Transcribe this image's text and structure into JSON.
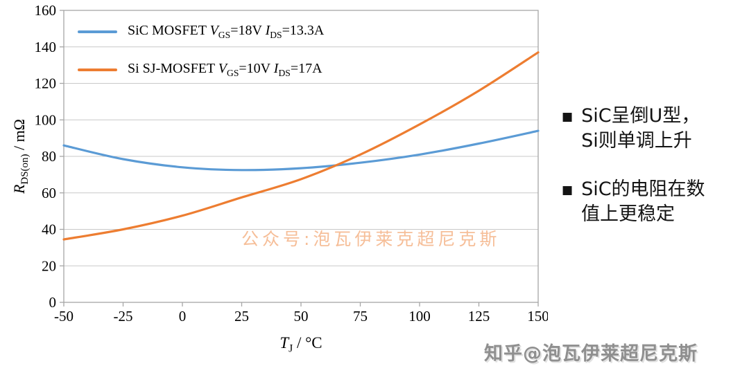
{
  "chart_data": {
    "type": "line",
    "title": "",
    "xlabel": "T_J / °C",
    "ylabel": "R_DS(on) / mΩ",
    "xlabel_parts": [
      {
        "t": "T",
        "s": "i"
      },
      {
        "t": "J",
        "s": "sub"
      },
      {
        "t": " / °C",
        "s": "n"
      }
    ],
    "ylabel_parts": [
      {
        "t": "R",
        "s": "i"
      },
      {
        "t": "DS(on)",
        "s": "sub"
      },
      {
        "t": " / mΩ",
        "s": "n"
      }
    ],
    "xlim": [
      -50,
      150
    ],
    "ylim": [
      0,
      160
    ],
    "x_ticks": [
      -50,
      -25,
      0,
      25,
      50,
      75,
      100,
      125,
      150
    ],
    "y_ticks": [
      0,
      20,
      40,
      60,
      80,
      100,
      120,
      140,
      160
    ],
    "grid": "horizontal",
    "legend_position": "top-left inside plot",
    "x": [
      -50,
      -25,
      0,
      25,
      50,
      75,
      100,
      125,
      150
    ],
    "series": [
      {
        "name": "SiC MOSFET VGS=18V IDS=13.3A",
        "label_parts": [
          {
            "t": "SiC MOSFET ",
            "s": "n"
          },
          {
            "t": "V",
            "s": "i"
          },
          {
            "t": "GS",
            "s": "sub"
          },
          {
            "t": "=18V ",
            "s": "n"
          },
          {
            "t": "I",
            "s": "i"
          },
          {
            "t": "DS",
            "s": "sub"
          },
          {
            "t": "=13.3A",
            "s": "n"
          }
        ],
        "color": "#5B9BD5",
        "line_width": 3.2,
        "values": [
          86,
          78.5,
          74,
          72.5,
          73.5,
          76.5,
          81,
          87,
          94
        ]
      },
      {
        "name": "Si SJ-MOSFET VGS=10V IDS=17A",
        "label_parts": [
          {
            "t": "Si SJ-MOSFET ",
            "s": "n"
          },
          {
            "t": "V",
            "s": "i"
          },
          {
            "t": "GS",
            "s": "sub"
          },
          {
            "t": "=10V ",
            "s": "n"
          },
          {
            "t": "I",
            "s": "i"
          },
          {
            "t": "DS",
            "s": "sub"
          },
          {
            "t": "=17A",
            "s": "n"
          }
        ],
        "color": "#ED7D31",
        "line_width": 3.2,
        "values": [
          34.5,
          40,
          47.5,
          57.5,
          67.5,
          81,
          97.5,
          116,
          137
        ]
      }
    ],
    "style": {
      "grid_color": "#C8C8C8",
      "border_color": "#A6A6A6",
      "tick_color": "#A6A6A6",
      "tick_label_size": 21
    }
  },
  "watermarks": {
    "center": "公众号:泡瓦伊莱克超尼克斯",
    "bottom_right": "知乎@泡瓦伊莱超尼克斯"
  },
  "notes": {
    "bullet_char": "■",
    "items": [
      {
        "lines": [
          "SiC呈倒U型，",
          "Si则单调上升"
        ]
      },
      {
        "lines": [
          "SiC的电阻在数",
          "值上更稳定"
        ]
      }
    ]
  }
}
